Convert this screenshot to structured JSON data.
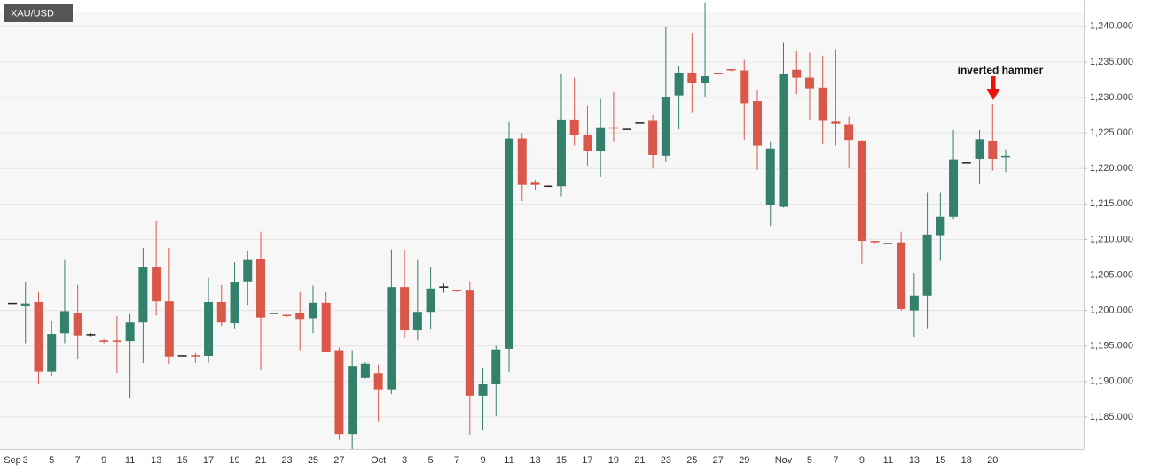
{
  "chart_data": {
    "type": "candlestick",
    "categories": [
      "Sep",
      "3",
      null,
      "5",
      null,
      "7",
      null,
      "9",
      null,
      "11",
      null,
      "13",
      null,
      "15",
      null,
      "17",
      null,
      "19",
      null,
      "21",
      null,
      "23",
      null,
      "25",
      null,
      "27",
      null,
      null,
      "Oct",
      null,
      "3",
      null,
      "5",
      null,
      "7",
      null,
      "9",
      null,
      "11",
      null,
      "13",
      null,
      "15",
      null,
      "17",
      null,
      "19",
      null,
      "21",
      null,
      "23",
      null,
      "25",
      null,
      "27",
      null,
      "29",
      null,
      null,
      "Nov",
      null,
      "5",
      null,
      "7",
      null,
      "9",
      null,
      "11",
      null,
      "13",
      null,
      "15",
      null,
      "18",
      null,
      "20",
      null
    ],
    "series": [
      {
        "name": "XAU/USD",
        "up_color": "#33806c",
        "down_color": "#d9584a",
        "flat_color": "#222222",
        "open": [
          1201.0,
          1200.6,
          1201.2,
          1191.4,
          1196.8,
          1199.7,
          1196.6,
          1195.8,
          1195.8,
          1195.7,
          1198.3,
          1206.1,
          1201.3,
          1193.6,
          1193.6,
          1193.6,
          1201.2,
          1198.2,
          1204.1,
          1207.2,
          1199.6,
          1199.3,
          1199.6,
          1198.9,
          1201.1,
          1194.4,
          1182.6,
          1190.5,
          1191.2,
          1188.9,
          1203.3,
          1197.2,
          1199.8,
          1203.3,
          1202.8,
          1202.8,
          1188.0,
          1189.6,
          1194.6,
          1224.2,
          1218.0,
          1217.5,
          1217.5,
          1226.9,
          1224.7,
          1222.5,
          1225.8,
          1225.5,
          1226.4,
          1226.7,
          1221.8,
          1230.3,
          1233.5,
          1232.0,
          1233.4,
          1233.9,
          1233.8,
          1229.5,
          1214.8,
          1214.6,
          1233.9,
          1232.8,
          1231.4,
          1226.6,
          1226.2,
          1223.9,
          1209.7,
          1209.4,
          1209.6,
          1200.0,
          1202.1,
          1210.6,
          1213.2,
          1220.8,
          1221.3,
          1223.9,
          1221.6
        ],
        "high": [
          1201.0,
          1204.0,
          1202.6,
          1198.5,
          1207.1,
          1203.6,
          1196.8,
          1196.0,
          1199.2,
          1199.5,
          1208.8,
          1212.7,
          1208.8,
          1193.6,
          1194.0,
          1204.6,
          1203.6,
          1206.8,
          1208.3,
          1211.1,
          1199.6,
          1199.3,
          1202.6,
          1203.5,
          1202.6,
          1194.8,
          1194.4,
          1192.7,
          1192.4,
          1208.6,
          1208.6,
          1207.1,
          1206.1,
          1203.8,
          1202.8,
          1204.1,
          1191.9,
          1195.0,
          1226.5,
          1225.0,
          1218.4,
          1217.5,
          1233.4,
          1232.8,
          1228.8,
          1229.8,
          1230.8,
          1225.5,
          1226.4,
          1227.5,
          1240.0,
          1234.4,
          1239.1,
          1243.4,
          1233.4,
          1233.9,
          1235.3,
          1231.0,
          1223.8,
          1237.8,
          1236.5,
          1236.3,
          1235.9,
          1236.8,
          1227.3,
          1224.0,
          1209.7,
          1209.4,
          1211.1,
          1205.3,
          1216.6,
          1216.6,
          1225.4,
          1220.8,
          1225.4,
          1229.0,
          1222.7
        ],
        "low": [
          1201.0,
          1195.4,
          1189.6,
          1190.7,
          1195.4,
          1193.2,
          1196.4,
          1195.4,
          1191.2,
          1187.7,
          1192.6,
          1199.3,
          1192.5,
          1193.6,
          1192.6,
          1192.6,
          1197.8,
          1197.5,
          1200.8,
          1191.6,
          1199.6,
          1199.1,
          1194.4,
          1196.8,
          1194.1,
          1181.8,
          1180.5,
          1190.4,
          1184.4,
          1188.2,
          1196.1,
          1195.8,
          1197.3,
          1202.5,
          1202.6,
          1182.5,
          1183.1,
          1185.1,
          1191.4,
          1215.4,
          1217.0,
          1217.5,
          1216.1,
          1223.2,
          1220.3,
          1218.8,
          1223.8,
          1225.5,
          1226.4,
          1220.0,
          1220.9,
          1225.5,
          1227.8,
          1230.0,
          1233.2,
          1233.7,
          1224.0,
          1219.8,
          1211.9,
          1214.5,
          1230.5,
          1226.8,
          1223.4,
          1223.2,
          1220.0,
          1206.6,
          1209.5,
          1209.4,
          1200.0,
          1196.2,
          1197.5,
          1207.0,
          1212.9,
          1220.8,
          1217.8,
          1219.7,
          1219.5
        ],
        "close": [
          1201.0,
          1201.0,
          1191.4,
          1196.7,
          1199.9,
          1196.5,
          1196.6,
          1195.6,
          1195.6,
          1198.3,
          1206.1,
          1201.3,
          1193.5,
          1193.6,
          1193.5,
          1201.2,
          1198.3,
          1204.0,
          1207.1,
          1199.0,
          1199.6,
          1199.2,
          1198.8,
          1201.1,
          1194.2,
          1182.6,
          1192.2,
          1192.5,
          1188.9,
          1203.3,
          1197.2,
          1199.8,
          1203.1,
          1203.3,
          1202.7,
          1188.0,
          1189.6,
          1194.5,
          1224.2,
          1217.7,
          1217.7,
          1217.5,
          1226.9,
          1224.7,
          1222.4,
          1225.8,
          1225.6,
          1225.5,
          1226.4,
          1221.9,
          1230.1,
          1233.5,
          1232.0,
          1233.0,
          1233.3,
          1233.8,
          1229.2,
          1223.2,
          1222.8,
          1233.3,
          1232.8,
          1231.3,
          1226.7,
          1226.3,
          1224.0,
          1209.8,
          1209.6,
          1209.4,
          1200.2,
          1202.1,
          1210.7,
          1213.2,
          1221.2,
          1220.8,
          1224.1,
          1221.4,
          1221.7
        ]
      }
    ],
    "ylim": [
      1180.5,
      1242.1
    ],
    "yticks": [
      {
        "value": 1185,
        "label": "1,185.000"
      },
      {
        "value": 1190,
        "label": "1,190.000"
      },
      {
        "value": 1195,
        "label": "1,195.000"
      },
      {
        "value": 1200,
        "label": "1,200.000"
      },
      {
        "value": 1205,
        "label": "1,205.000"
      },
      {
        "value": 1210,
        "label": "1,210.000"
      },
      {
        "value": 1215,
        "label": "1,215.000"
      },
      {
        "value": 1220,
        "label": "1,220.000"
      },
      {
        "value": 1225,
        "label": "1,225.000"
      },
      {
        "value": 1230,
        "label": "1,230.000"
      },
      {
        "value": 1235,
        "label": "1,235.000"
      },
      {
        "value": 1240,
        "label": "1,240.000"
      }
    ],
    "grid": true,
    "annotations": [
      {
        "text": "inverted hammer"
      }
    ]
  }
}
